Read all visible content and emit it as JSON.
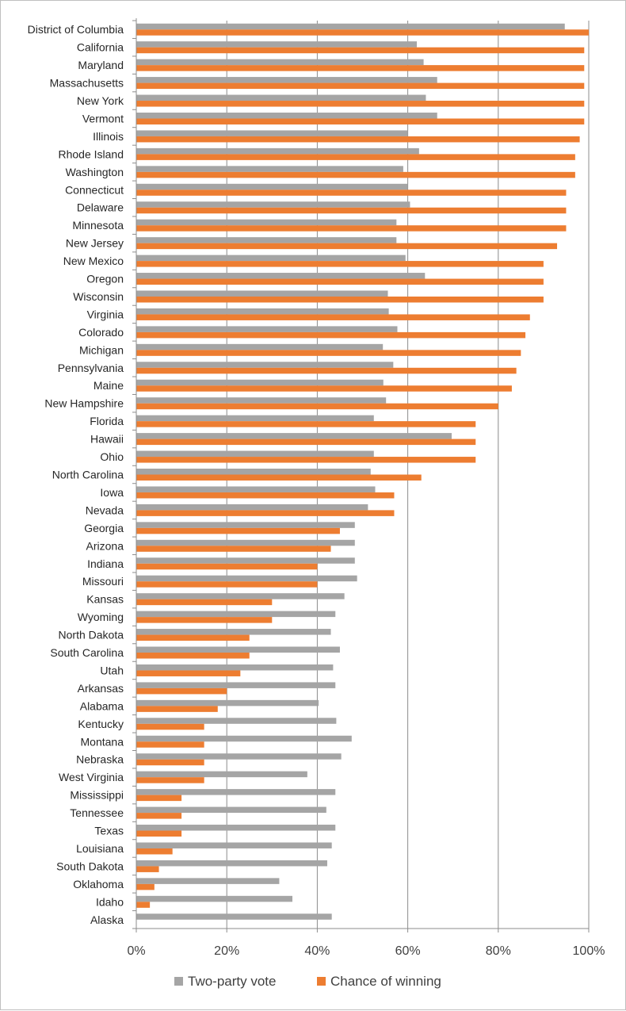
{
  "chart_data": {
    "type": "bar",
    "orientation": "horizontal",
    "title": "",
    "xlabel": "",
    "ylabel": "",
    "xlim": [
      0,
      100
    ],
    "grid": true,
    "legend_position": "bottom",
    "x_ticks": [
      "0%",
      "20%",
      "40%",
      "60%",
      "80%",
      "100%"
    ],
    "categories": [
      "District of Columbia",
      "California",
      "Maryland",
      "Massachusetts",
      "New York",
      "Vermont",
      "Illinois",
      "Rhode Island",
      "Washington",
      "Connecticut",
      "Delaware",
      "Minnesota",
      "New Jersey",
      "New Mexico",
      "Oregon",
      "Wisconsin",
      "Virginia",
      "Colorado",
      "Michigan",
      "Pennsylvania",
      "Maine",
      "New Hampshire",
      "Florida",
      "Hawaii",
      "Ohio",
      "North Carolina",
      "Iowa",
      "Nevada",
      "Georgia",
      "Arizona",
      "Indiana",
      "Missouri",
      "Kansas",
      "Wyoming",
      "North Dakota",
      "South Carolina",
      "Utah",
      "Arkansas",
      "Alabama",
      "Kentucky",
      "Montana",
      "Nebraska",
      "West Virginia",
      "Mississippi",
      "Tennessee",
      "Texas",
      "Louisiana",
      "South Dakota",
      "Oklahoma",
      "Idaho",
      "Alaska"
    ],
    "series": [
      {
        "name": "Two-party vote",
        "color": "#a5a5a5",
        "values": [
          94.7,
          62.0,
          63.5,
          66.5,
          64.0,
          66.5,
          60.0,
          62.5,
          59.0,
          60.0,
          60.5,
          57.5,
          57.5,
          59.5,
          63.8,
          55.6,
          55.8,
          57.7,
          54.5,
          56.8,
          54.6,
          55.2,
          52.5,
          69.7,
          52.5,
          51.8,
          52.8,
          51.2,
          48.3,
          48.3,
          48.3,
          48.8,
          46.0,
          44.0,
          43.0,
          45.0,
          43.5,
          44.0,
          40.3,
          44.2,
          47.6,
          45.3,
          37.8,
          44.0,
          42.0,
          44.0,
          43.2,
          42.2,
          31.6,
          34.5,
          43.2
        ]
      },
      {
        "name": "Chance of winning",
        "color": "#ed7d31",
        "values": [
          100,
          99,
          99,
          99,
          99,
          99,
          98,
          97,
          97,
          95,
          95,
          95,
          93,
          90,
          90,
          90,
          87,
          86,
          85,
          84,
          83,
          80,
          75,
          75,
          75,
          63,
          57,
          57,
          45,
          43,
          40,
          40,
          30,
          30,
          25,
          25,
          23,
          20,
          18,
          15,
          15,
          15,
          15,
          10,
          10,
          10,
          8,
          5,
          4,
          3,
          0
        ]
      }
    ]
  }
}
